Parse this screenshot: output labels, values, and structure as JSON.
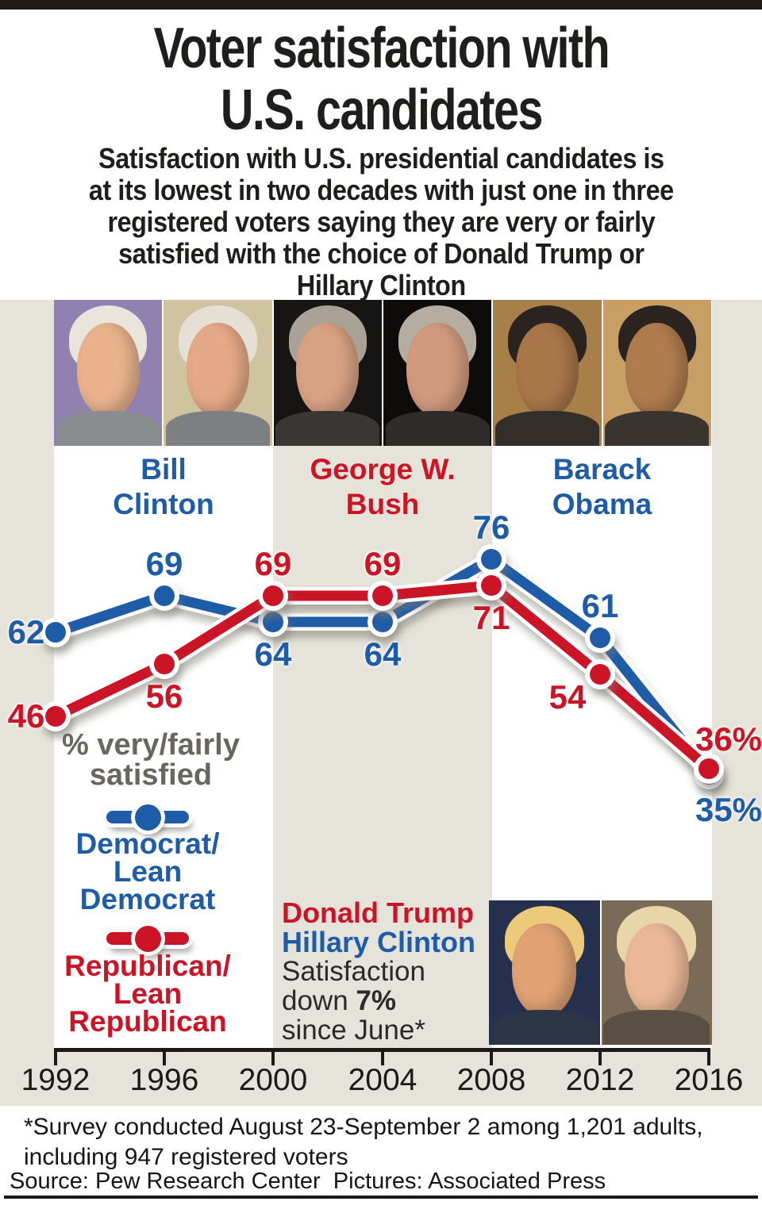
{
  "page": {
    "top_bar_color": "#1b1a18",
    "chart_bg_color": "#e5e3da",
    "band_color": "#ffffff"
  },
  "header": {
    "title": "Voter satisfaction with\nU.S. candidates",
    "subtitle": "Satisfaction with U.S. presidential candidates is\nat its lowest in two decades with just one in three\nregistered voters saying they are very or fairly\nsatisfied with the choice of Donald Trump or\nHillary Clinton"
  },
  "chart_data": {
    "type": "line",
    "categories": [
      "1992",
      "1996",
      "2000",
      "2004",
      "2008",
      "2012",
      "2016"
    ],
    "xlabel": "",
    "ylabel": "% very/fairly satisfied",
    "ylim": [
      30,
      80
    ],
    "grid": false,
    "legend_position": "left-middle",
    "series": [
      {
        "name": "Democrat/Lean Democrat",
        "color": "#1e5ca8",
        "values": [
          62,
          69,
          64,
          64,
          76,
          61,
          35
        ],
        "labels": [
          "62",
          "69",
          "64",
          "64",
          "76",
          "61",
          "35%"
        ],
        "label_pos": [
          "left",
          "above",
          "below",
          "below",
          "above",
          "above",
          "below-right"
        ]
      },
      {
        "name": "Republican/Lean Republican",
        "color": "#cb1426",
        "values": [
          46,
          56,
          69,
          69,
          71,
          54,
          36
        ],
        "labels": [
          "46",
          "56",
          "69",
          "69",
          "71",
          "54",
          "36%"
        ],
        "label_pos": [
          "left",
          "below",
          "above",
          "above",
          "below",
          "below-left",
          "above-right"
        ]
      }
    ],
    "era_bands": [
      {
        "label": "Bill\nClinton",
        "color": "#1e5ca8"
      },
      {
        "label": "George W.\nBush",
        "color": "#cb1426"
      },
      {
        "label": "Barack\nObama",
        "color": "#1e5ca8"
      }
    ],
    "legend": {
      "heading": "% very/fairly\nsatisfied",
      "heading_color": "#68665f",
      "entries": [
        {
          "label": "Democrat/\nLean\nDemocrat",
          "color": "#1e5ca8"
        },
        {
          "label": "Republican/\nLean\nRepublican",
          "color": "#cb1426"
        }
      ]
    },
    "annotation": {
      "candidate_red": "Donald Trump",
      "candidate_blue": "Hillary Clinton",
      "text_line1": "Satisfaction",
      "text_line2_prefix": "down ",
      "text_line2_bold": "7%",
      "text_line3": "since June*"
    }
  },
  "photos": {
    "top": [
      {
        "person": "bill-clinton",
        "bg": "#9181b1",
        "hair": "#eae5dc",
        "skin": "#e9b28c",
        "suit": "#8a8d90"
      },
      {
        "person": "bill-clinton",
        "bg": "#cfc3a0",
        "hair": "#e6e0d4",
        "skin": "#e5a987",
        "suit": "#7c8083"
      },
      {
        "person": "george-w-bush",
        "bg": "#171513",
        "hair": "#aaa295",
        "skin": "#d8a184",
        "suit": "#3a3633"
      },
      {
        "person": "george-w-bush",
        "bg": "#0d0c0b",
        "hair": "#b5ada0",
        "skin": "#d19a7e",
        "suit": "#2f2b28"
      },
      {
        "person": "barack-obama",
        "bg": "#a87e49",
        "hair": "#2b2320",
        "skin": "#a9764a",
        "suit": "#332e29"
      },
      {
        "person": "barack-obama",
        "bg": "#c79e63",
        "hair": "#2b2320",
        "skin": "#b07c4e",
        "suit": "#3a342e"
      }
    ],
    "bottom": [
      {
        "person": "donald-trump",
        "bg": "#25304e",
        "hair": "#edc97c",
        "skin": "#e0a173",
        "suit": "#2c3446"
      },
      {
        "person": "hillary-clinton",
        "bg": "#7a6a58",
        "hair": "#e8d5a8",
        "skin": "#eab896",
        "suit": "#5a4f44"
      }
    ]
  },
  "footer": {
    "footnote": "*Survey conducted August 23-September 2 among 1,201 adults,\nincluding 947 registered voters",
    "source": "Source: Pew Research Center  Pictures: Associated Press"
  }
}
